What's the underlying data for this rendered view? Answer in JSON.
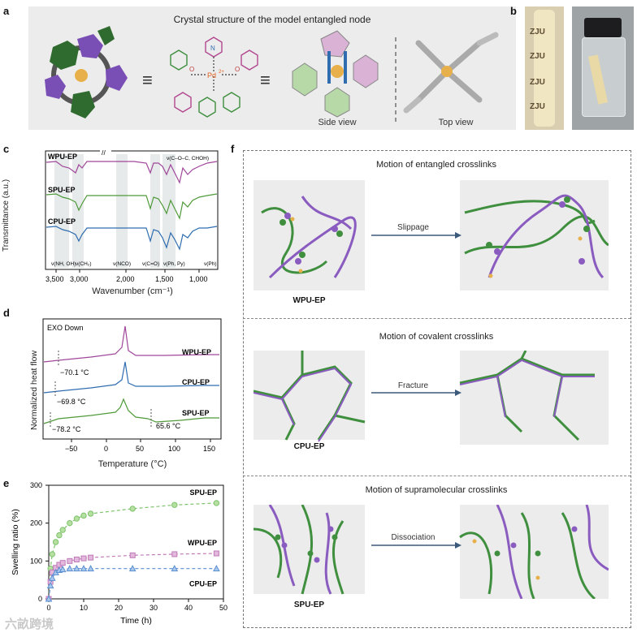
{
  "panel_a": {
    "label": "a",
    "title": "Crystal structure of the model entangled node",
    "side_view": "Side view",
    "top_view": "Top view",
    "equiv": "≡",
    "pd_label": "Pd",
    "pd_charge": "2+",
    "atom_N": "N",
    "atom_O": "O"
  },
  "panel_b": {
    "label": "b",
    "sample_text": "ZJU"
  },
  "panel_c": {
    "label": "c",
    "ylabel": "Transmittance (a.u.)",
    "xlabel": "Wavenumber (cm⁻¹)",
    "series_labels": [
      "WPU-EP",
      "SPU-EP",
      "CPU-EP"
    ],
    "xticks": [
      "3,500",
      "3,000",
      "2,000",
      "1,500",
      "1,000"
    ],
    "annotations": [
      "ν(NH, OH)",
      "ν(CH₂)",
      "ν(NCO)",
      "ν(C=O)",
      "ν(Ph, Py)",
      "ν(Ph)",
      "ν(C–O–C, CHOH)"
    ],
    "break_mark": "//"
  },
  "panel_d": {
    "label": "d",
    "ylabel": "Normalized heat flow",
    "xlabel": "Temperature (°C)",
    "note": "EXO Down",
    "series_labels": [
      "WPU-EP",
      "CPU-EP",
      "SPU-EP"
    ],
    "tg_labels": [
      "−70.1 °C",
      "−69.8 °C",
      "−78.2 °C",
      "65.6 °C"
    ],
    "xticks": [
      "−50",
      "0",
      "50",
      "100",
      "150"
    ]
  },
  "chart_data": [
    {
      "type": "line",
      "panel": "e",
      "xlabel": "Time (h)",
      "ylabel": "Swelling ratio (%)",
      "xlim": [
        0,
        50
      ],
      "ylim": [
        0,
        300
      ],
      "xticks": [
        0,
        10,
        20,
        30,
        40,
        50
      ],
      "yticks": [
        0,
        100,
        200,
        300
      ],
      "series": [
        {
          "name": "SPU-EP",
          "color": "#7cc26a",
          "marker": "circle",
          "x": [
            0,
            0.5,
            1,
            2,
            3,
            4,
            6,
            8,
            10,
            12,
            24,
            36,
            48
          ],
          "y": [
            0,
            80,
            118,
            150,
            168,
            182,
            200,
            212,
            220,
            225,
            238,
            248,
            253
          ]
        },
        {
          "name": "WPU-EP",
          "color": "#c07ab8",
          "marker": "square",
          "x": [
            0,
            0.5,
            1,
            2,
            3,
            4,
            6,
            8,
            10,
            12,
            24,
            36,
            48
          ],
          "y": [
            0,
            45,
            70,
            82,
            90,
            95,
            100,
            104,
            107,
            109,
            115,
            118,
            120
          ]
        },
        {
          "name": "CPU-EP",
          "color": "#5b8fd0",
          "marker": "triangle",
          "x": [
            0,
            0.5,
            1,
            2,
            3,
            4,
            6,
            8,
            10,
            12,
            24,
            36,
            48
          ],
          "y": [
            0,
            35,
            55,
            70,
            76,
            78,
            80,
            80,
            80,
            80,
            80,
            80,
            80
          ]
        }
      ]
    }
  ],
  "panel_e": {
    "label": "e"
  },
  "panel_f": {
    "label": "f",
    "sections": [
      {
        "title": "Motion of entangled crosslinks",
        "arrow": "Slippage",
        "name": "WPU-EP"
      },
      {
        "title": "Motion of covalent crosslinks",
        "arrow": "Fracture",
        "name": "CPU-EP"
      },
      {
        "title": "Motion of supramolecular crosslinks",
        "arrow": "Dissociation",
        "name": "SPU-EP"
      }
    ]
  },
  "watermark": "六畝跨境",
  "colors": {
    "purple": "#8a5cc0",
    "green": "#3f8f3f",
    "blue": "#2f6db0",
    "pink": "#b2478f",
    "gold": "#e8b04a"
  }
}
